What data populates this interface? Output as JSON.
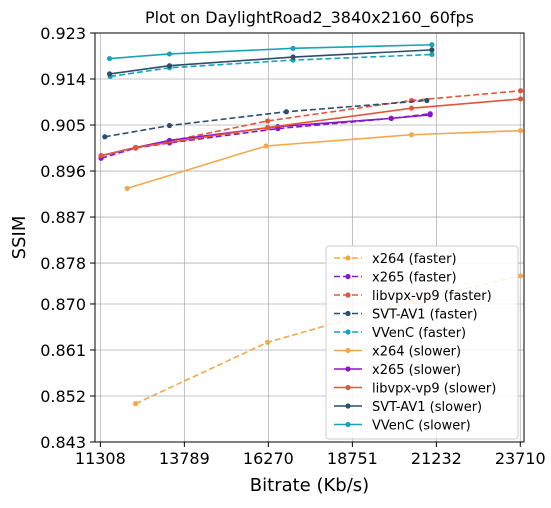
{
  "chart_data": {
    "type": "line",
    "title": "Plot on DaylightRoad2_3840x2160_60fps",
    "xlabel": "Bitrate (Kb/s)",
    "ylabel": "SSIM",
    "xlim": [
      11150,
      23820
    ],
    "ylim": [
      0.843,
      0.923
    ],
    "xticks": [
      11308,
      13789,
      16270,
      18751,
      21232,
      23710
    ],
    "yticks": [
      0.843,
      0.852,
      0.861,
      0.87,
      0.878,
      0.887,
      0.896,
      0.905,
      0.914,
      0.923
    ],
    "xtick_labels": [
      "11308",
      "13789",
      "16270",
      "18751",
      "21232",
      "23710"
    ],
    "ytick_labels": [
      "0.843",
      "0.852",
      "0.861",
      "0.870",
      "0.878",
      "0.887",
      "0.896",
      "0.905",
      "0.914",
      "0.923"
    ],
    "grid": true,
    "legend_position": "lower-right",
    "series": [
      {
        "name": "x264 (faster)",
        "color": "#f2a74b",
        "dash": true,
        "x": [
          12350,
          16250,
          20500,
          23720
        ],
        "y": [
          0.8505,
          0.8625,
          0.8705,
          0.8755
        ]
      },
      {
        "name": "x265 (faster)",
        "color": "#8a16c9",
        "dash": true,
        "x": [
          11330,
          12350,
          13350,
          16550,
          19900,
          21050
        ],
        "y": [
          0.8985,
          0.9005,
          0.9015,
          0.9043,
          0.9063,
          0.9072
        ]
      },
      {
        "name": "libvpx-vp9 (faster)",
        "color": "#e0573a",
        "dash": true,
        "x": [
          12350,
          16250,
          20500,
          23720
        ],
        "y": [
          0.9005,
          0.9058,
          0.9098,
          0.9117
        ]
      },
      {
        "name": "SVT-AV1 (faster)",
        "color": "#2c4f6b",
        "dash": true,
        "x": [
          11440,
          13350,
          16800,
          20950
        ],
        "y": [
          0.9027,
          0.9049,
          0.9076,
          0.9098
        ]
      },
      {
        "name": "VVenC (faster)",
        "color": "#19a3b8",
        "dash": true,
        "x": [
          11600,
          13350,
          17000,
          21100
        ],
        "y": [
          0.9145,
          0.9162,
          0.9177,
          0.9188
        ]
      },
      {
        "name": "x264 (slower)",
        "color": "#f2a74b",
        "dash": false,
        "x": [
          12100,
          16200,
          20500,
          23720
        ],
        "y": [
          0.8926,
          0.9009,
          0.9031,
          0.9039
        ]
      },
      {
        "name": "x265 (slower)",
        "color": "#8a16c9",
        "dash": false,
        "x": [
          11330,
          12350,
          13350,
          16550,
          19900,
          21050
        ],
        "y": [
          0.899,
          0.9006,
          0.902,
          0.9047,
          0.9063,
          0.907
        ]
      },
      {
        "name": "libvpx-vp9 (slower)",
        "color": "#e0573a",
        "dash": false,
        "x": [
          11330,
          12350,
          16250,
          20500,
          23720
        ],
        "y": [
          0.899,
          0.9006,
          0.9045,
          0.9083,
          0.9101
        ]
      },
      {
        "name": "SVT-AV1 (slower)",
        "color": "#2c4f6b",
        "dash": false,
        "x": [
          11580,
          13350,
          17000,
          21100
        ],
        "y": [
          0.915,
          0.9166,
          0.9183,
          0.9197
        ]
      },
      {
        "name": "VVenC (slower)",
        "color": "#19a3b8",
        "dash": false,
        "x": [
          11580,
          13350,
          17000,
          21100
        ],
        "y": [
          0.918,
          0.9189,
          0.92,
          0.9207
        ]
      }
    ]
  }
}
